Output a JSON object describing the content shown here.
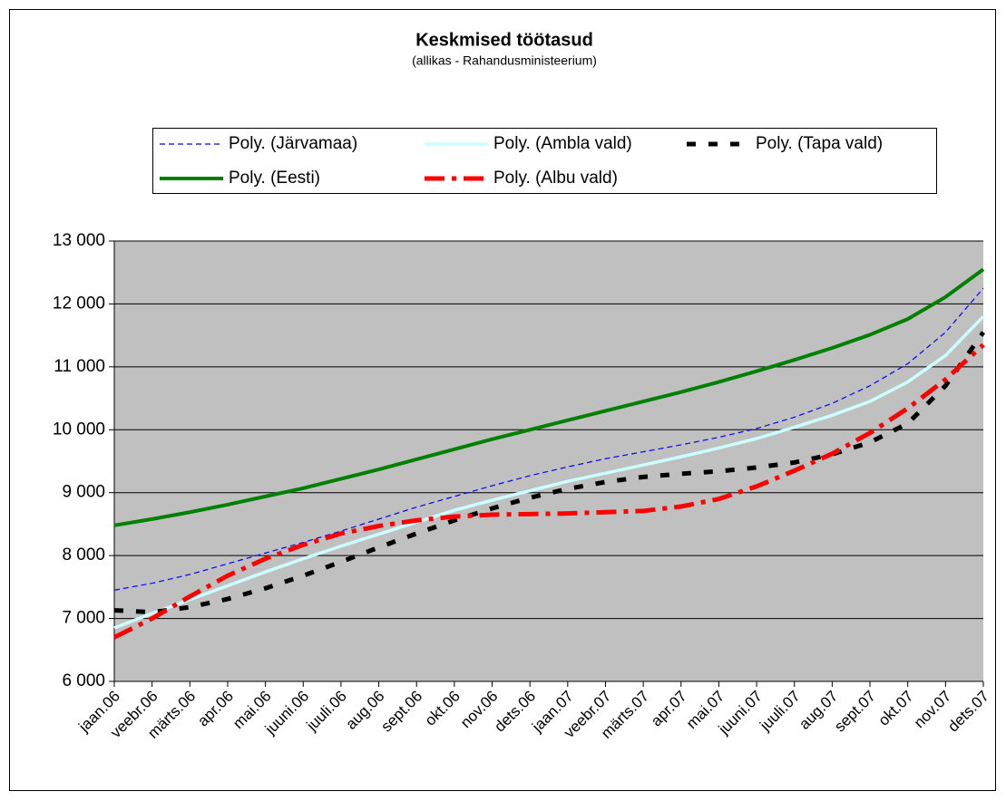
{
  "chart_data": {
    "type": "line",
    "title": "Keskmised töötasud",
    "subtitle": "(allikas - Rahandusministeerium)",
    "categories": [
      "jaan.06",
      "veebr.06",
      "märts.06",
      "apr.06",
      "mai.06",
      "juuni.06",
      "juuli.06",
      "aug.06",
      "sept.06",
      "okt.06",
      "nov.06",
      "dets.06",
      "jaan.07",
      "veebr.07",
      "märts.07",
      "apr.07",
      "mai.07",
      "juuni.07",
      "juuli.07",
      "aug.07",
      "sept.07",
      "okt.07",
      "nov.07",
      "dets.07"
    ],
    "series": [
      {
        "name": "Poly. (Järvamaa)",
        "color": "#0000ff",
        "values": [
          7450,
          7560,
          7700,
          7870,
          8040,
          8210,
          8390,
          8580,
          8770,
          8940,
          9110,
          9270,
          9410,
          9540,
          9650,
          9760,
          9880,
          10020,
          10200,
          10420,
          10700,
          11050,
          11550,
          12250
        ]
      },
      {
        "name": "Poly. (Ambla vald)",
        "color": "#ccffff",
        "values": [
          6850,
          7080,
          7300,
          7520,
          7740,
          7950,
          8150,
          8340,
          8530,
          8720,
          8880,
          9030,
          9180,
          9310,
          9440,
          9570,
          9710,
          9860,
          10040,
          10230,
          10450,
          10760,
          11180,
          11800
        ]
      },
      {
        "name": "Poly. (Tapa vald)",
        "color": "#000000",
        "values": [
          7130,
          7100,
          7180,
          7310,
          7480,
          7680,
          7900,
          8130,
          8350,
          8560,
          8750,
          8920,
          9060,
          9170,
          9250,
          9300,
          9340,
          9400,
          9480,
          9610,
          9800,
          10100,
          10700,
          11550
        ]
      },
      {
        "name": "Poly. (Eesti)",
        "color": "#008000",
        "values": [
          8480,
          8580,
          8690,
          8810,
          8940,
          9070,
          9220,
          9370,
          9530,
          9690,
          9850,
          10000,
          10150,
          10300,
          10450,
          10600,
          10760,
          10930,
          11110,
          11300,
          11510,
          11760,
          12110,
          12550
        ]
      },
      {
        "name": "Poly. (Albu vald)",
        "color": "#ff0000",
        "values": [
          6700,
          7000,
          7350,
          7680,
          7950,
          8170,
          8350,
          8470,
          8560,
          8620,
          8650,
          8660,
          8670,
          8690,
          8710,
          8780,
          8900,
          9100,
          9350,
          9620,
          9950,
          10340,
          10800,
          11350
        ]
      }
    ],
    "ylim": [
      6000,
      13000
    ],
    "yticks": [
      {
        "value": 6000,
        "label": "6 000"
      },
      {
        "value": 7000,
        "label": "7 000"
      },
      {
        "value": 8000,
        "label": "8 000"
      },
      {
        "value": 9000,
        "label": "9 000"
      },
      {
        "value": 10000,
        "label": "10 000"
      },
      {
        "value": 11000,
        "label": "11 000"
      },
      {
        "value": 12000,
        "label": "12 000"
      },
      {
        "value": 13000,
        "label": "13 000"
      }
    ],
    "grid": true,
    "legend": "top",
    "plot_background": "#c0c0c0"
  }
}
